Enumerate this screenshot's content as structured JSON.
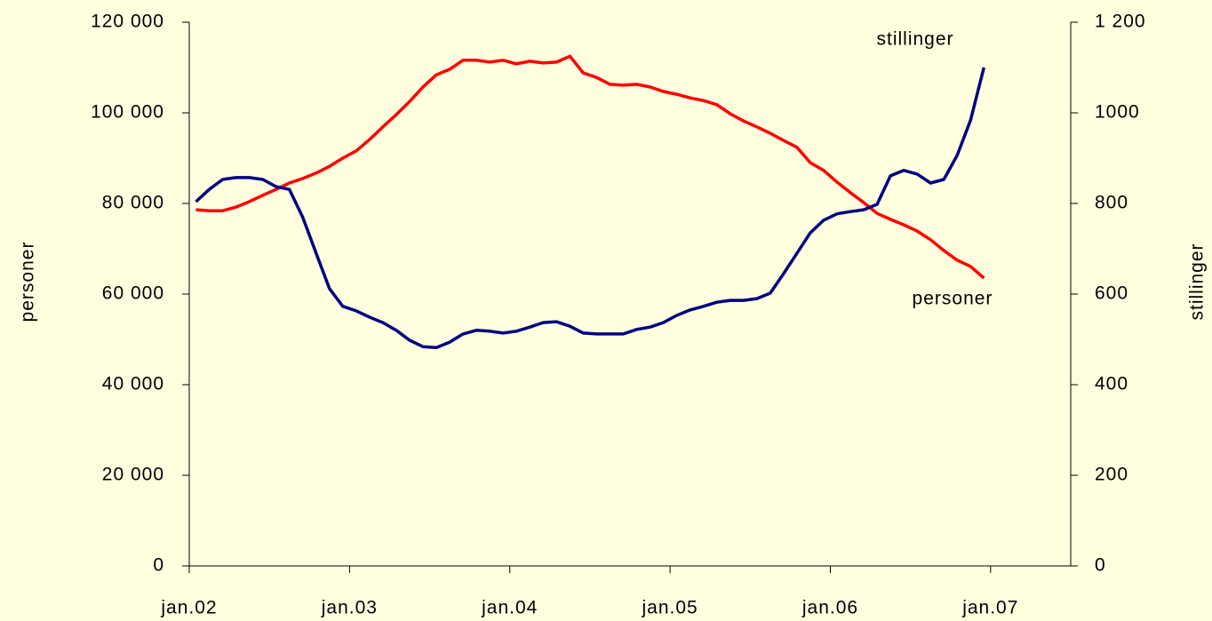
{
  "chart_data": {
    "type": "line",
    "y_label": "personer",
    "y2_label": "stillinger",
    "annotations": [
      "stillinger",
      "personer"
    ],
    "x": [
      0.5,
      1.5,
      2.5,
      3.5,
      4.5,
      5.5,
      6.5,
      7.5,
      8.5,
      9.5,
      10.5,
      11.5,
      12.5,
      13.5,
      14.5,
      15.5,
      16.5,
      17.5,
      18.5,
      19.5,
      20.5,
      21.5,
      22.5,
      23.5,
      24.5,
      25.5,
      26.5,
      27.5,
      28.5,
      29.5,
      30.5,
      31.5,
      32.5,
      33.5,
      34.5,
      35.5,
      36.5,
      37.5,
      38.5,
      39.5,
      40.5,
      41.5,
      42.5,
      43.5,
      44.5,
      45.5,
      46.5,
      47.5,
      48.5,
      49.5,
      50.5,
      51.5,
      52.5,
      53.5,
      54.5,
      55.5,
      56.5,
      57.5,
      58.5,
      59.5
    ],
    "xlim": [
      0,
      66
    ],
    "xticks": [
      {
        "value": 0,
        "label": "jan.02"
      },
      {
        "value": 12,
        "label": "jan.03"
      },
      {
        "value": 24,
        "label": "jan.04"
      },
      {
        "value": 36,
        "label": "jan.05"
      },
      {
        "value": 48,
        "label": "jan.06"
      },
      {
        "value": 60,
        "label": "jan.07"
      }
    ],
    "ylim": [
      0,
      120000
    ],
    "yticks": [
      0,
      {
        "value": 20000,
        "label": "20 000"
      },
      {
        "value": 40000,
        "label": "40 000"
      },
      {
        "value": 60000,
        "label": "60 000"
      },
      {
        "value": 80000,
        "label": "80 000"
      },
      {
        "value": 100000,
        "label": "100 000"
      },
      {
        "value": 120000,
        "label": "120 000"
      }
    ],
    "y2lim": [
      0,
      1200
    ],
    "y2ticks": [
      0,
      200,
      400,
      600,
      800,
      1000,
      {
        "value": 1200,
        "label": "1 200"
      }
    ],
    "series": [
      {
        "name": "personer",
        "color": "#ff0000",
        "axis": "y",
        "values": [
          78600,
          78400,
          78400,
          79200,
          80400,
          81800,
          83100,
          84500,
          85500,
          86700,
          88200,
          90000,
          91600,
          94100,
          96900,
          99600,
          102500,
          105700,
          108400,
          109600,
          111600,
          111600,
          111200,
          111600,
          110800,
          111400,
          111000,
          111200,
          112500,
          108800,
          107800,
          106300,
          106100,
          106300,
          105700,
          104700,
          104100,
          103300,
          102700,
          101800,
          99800,
          98200,
          96900,
          95500,
          93900,
          92400,
          89000,
          87300,
          84700,
          82400,
          80200,
          77800,
          76500,
          75300,
          73900,
          72000,
          69600,
          67500,
          66100,
          63500
        ]
      },
      {
        "name": "stillinger",
        "color": "#000080",
        "axis": "y2",
        "values": [
          804,
          831,
          853,
          857,
          857,
          853,
          837,
          831,
          769,
          690,
          612,
          573,
          563,
          549,
          537,
          520,
          498,
          484,
          482,
          494,
          512,
          520,
          518,
          514,
          518,
          527,
          537,
          539,
          529,
          514,
          512,
          512,
          512,
          522,
          527,
          537,
          553,
          565,
          573,
          582,
          586,
          586,
          590,
          602,
          645,
          690,
          735,
          763,
          777,
          782,
          786,
          798,
          861,
          873,
          865,
          845,
          853,
          906,
          984,
          1100
        ]
      }
    ]
  }
}
